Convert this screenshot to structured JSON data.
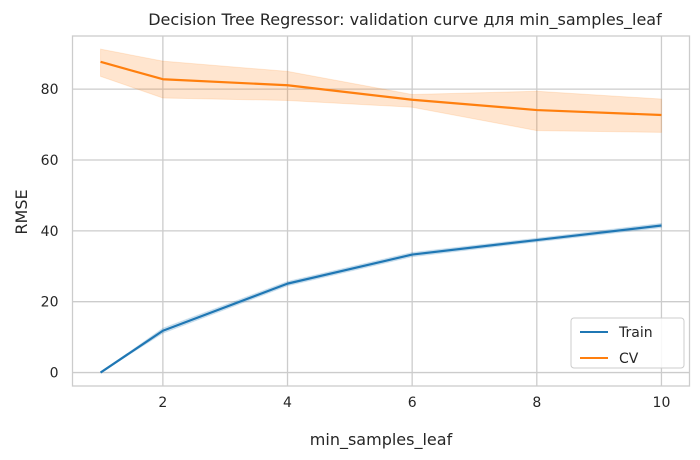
{
  "chart_data": {
    "type": "line",
    "title": "Decision Tree Regressor: validation curve для min_samples_leaf",
    "xlabel": "min_samples_leaf",
    "ylabel": "RMSE",
    "xlim": [
      0.55,
      10.45
    ],
    "ylim": [
      -3.8,
      95
    ],
    "xticks": [
      2,
      4,
      6,
      8,
      10
    ],
    "yticks": [
      0,
      20,
      40,
      60,
      80
    ],
    "grid": true,
    "legend": "bottom-right",
    "x": [
      1,
      2,
      4,
      6,
      8,
      10
    ],
    "series": [
      {
        "name": "Train",
        "color": "#1f77b4",
        "values": [
          0,
          11.8,
          25.1,
          33.3,
          37.4,
          41.5
        ],
        "lower": [
          0,
          11.1,
          24.5,
          32.7,
          36.9,
          40.9
        ],
        "upper": [
          0,
          12.5,
          25.7,
          33.9,
          37.9,
          42.1
        ]
      },
      {
        "name": "CV",
        "color": "#ff7f0e",
        "values": [
          87.7,
          82.8,
          81.1,
          77.0,
          74.1,
          72.7
        ],
        "lower": [
          83.6,
          77.5,
          76.8,
          74.9,
          68.3,
          67.8
        ],
        "upper": [
          91.3,
          87.9,
          85.0,
          78.5,
          79.4,
          77.2
        ]
      }
    ]
  }
}
